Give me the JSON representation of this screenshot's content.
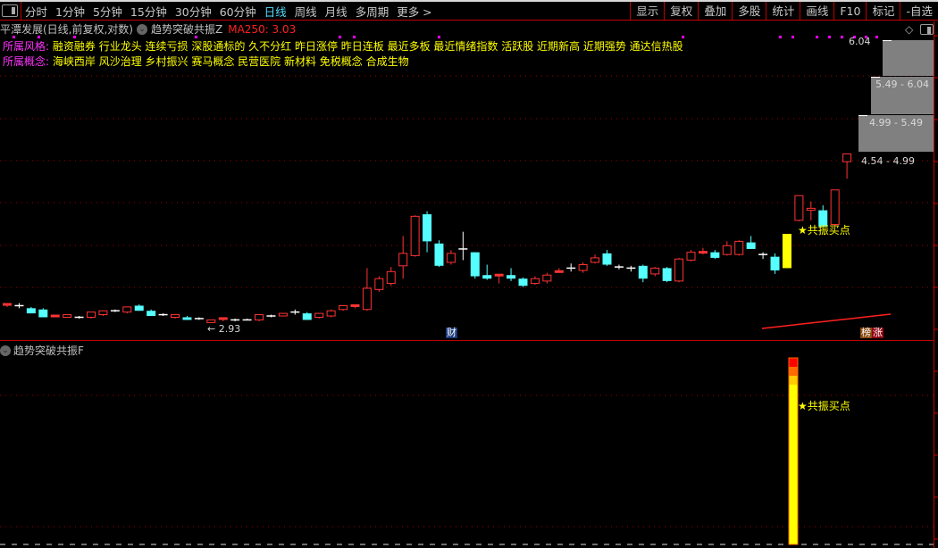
{
  "toolbar": {
    "periods": [
      "分时",
      "1分钟",
      "5分钟",
      "15分钟",
      "30分钟",
      "60分钟",
      "日线",
      "周线",
      "月线",
      "多周期",
      "更多 >"
    ],
    "active_period": "日线",
    "buttons": [
      "显示",
      "复权",
      "叠加",
      "多股",
      "统计",
      "画线",
      "F10",
      "标记",
      "-自选"
    ]
  },
  "header": {
    "stock": "平潭发展(日线,前复权,对数)",
    "indicator": "趋势突破共振Z",
    "ma_label": "MA250: 3.03"
  },
  "tags": {
    "style_label": "所属风格:",
    "style_values": "融资融券 行业龙头 连续亏损 深股通标的 久不分红 昨日涨停 昨日连板 最近多板 最近情绪指数 活跃股 近期新高 近期强势 通达信热股",
    "concept_label": "所属概念:",
    "concept_values": "海峡西岸 风沙治理 乡村振兴 赛马概念 民营医院 新材料 免税概念 合成生物"
  },
  "price_ranges": {
    "top": "6.04",
    "r1": "5.49 - 6.04",
    "r2": "4.99 - 5.49",
    "r3": "4.54 - 4.99"
  },
  "low_marker": "← 2.93",
  "badges": {
    "finance": "财",
    "rank": "榜",
    "rise": "涨"
  },
  "signal_label": "★共振买点",
  "lower_panel": {
    "title": "趋势突破共振F",
    "signal_label": "★共振买点"
  },
  "colors": {
    "up": "#ff3333",
    "down": "#55ffff",
    "neutral": "#ffffff",
    "signal": "#ffff00",
    "grid": "#a00000"
  },
  "chart_data": {
    "type": "candlestick",
    "scale": "log",
    "ylim": [
      2.9,
      6.1
    ],
    "candles": [
      [
        3.06,
        3.08,
        3.05,
        3.07
      ],
      [
        3.06,
        3.08,
        3.04,
        3.06
      ],
      [
        3.04,
        3.05,
        3.0,
        3.0
      ],
      [
        3.03,
        3.04,
        2.97,
        2.97
      ],
      [
        2.97,
        2.98,
        2.97,
        2.98
      ],
      [
        2.97,
        2.99,
        2.97,
        2.99
      ],
      [
        2.97,
        2.98,
        2.96,
        2.97
      ],
      [
        2.97,
        3.01,
        2.96,
        3.01
      ],
      [
        2.99,
        3.02,
        2.98,
        3.02
      ],
      [
        3.02,
        3.03,
        3.01,
        3.02
      ],
      [
        3.01,
        3.05,
        3.0,
        3.05
      ],
      [
        3.06,
        3.07,
        3.02,
        3.02
      ],
      [
        3.02,
        3.03,
        2.98,
        2.98
      ],
      [
        2.99,
        3.0,
        2.98,
        2.99
      ],
      [
        2.97,
        2.99,
        2.96,
        2.99
      ],
      [
        2.97,
        2.98,
        2.95,
        2.95
      ],
      [
        2.96,
        2.97,
        2.95,
        2.96
      ],
      [
        2.93,
        2.95,
        2.93,
        2.95
      ],
      [
        2.95,
        2.96,
        2.94,
        2.96
      ],
      [
        2.95,
        2.96,
        2.94,
        2.95
      ],
      [
        2.95,
        2.96,
        2.95,
        2.95
      ],
      [
        2.95,
        2.99,
        2.94,
        2.99
      ],
      [
        2.98,
        2.99,
        2.97,
        2.98
      ],
      [
        2.98,
        3.0,
        2.98,
        3.0
      ],
      [
        3.01,
        3.03,
        2.99,
        3.01
      ],
      [
        3.0,
        3.01,
        2.95,
        2.95
      ],
      [
        2.97,
        3.0,
        2.96,
        3.0
      ],
      [
        2.98,
        3.03,
        2.97,
        3.02
      ],
      [
        3.03,
        3.06,
        3.02,
        3.06
      ],
      [
        3.05,
        3.06,
        3.04,
        3.06
      ],
      [
        3.03,
        3.37,
        3.02,
        3.2
      ],
      [
        3.19,
        3.3,
        3.17,
        3.28
      ],
      [
        3.24,
        3.38,
        3.22,
        3.34
      ],
      [
        3.39,
        3.66,
        3.28,
        3.5
      ],
      [
        3.48,
        3.86,
        3.47,
        3.85
      ],
      [
        3.87,
        3.9,
        3.51,
        3.61
      ],
      [
        3.59,
        3.62,
        3.38,
        3.39
      ],
      [
        3.42,
        3.53,
        3.4,
        3.5
      ],
      [
        3.54,
        3.7,
        3.44,
        3.54
      ],
      [
        3.51,
        3.51,
        3.28,
        3.3
      ],
      [
        3.31,
        3.4,
        3.27,
        3.28
      ],
      [
        3.3,
        3.31,
        3.24,
        3.31
      ],
      [
        3.31,
        3.37,
        3.26,
        3.28
      ],
      [
        3.28,
        3.29,
        3.21,
        3.22
      ],
      [
        3.24,
        3.3,
        3.23,
        3.28
      ],
      [
        3.26,
        3.33,
        3.24,
        3.31
      ],
      [
        3.33,
        3.37,
        3.33,
        3.34
      ],
      [
        3.37,
        3.41,
        3.34,
        3.37
      ],
      [
        3.35,
        3.42,
        3.33,
        3.4
      ],
      [
        3.42,
        3.49,
        3.41,
        3.46
      ],
      [
        3.5,
        3.53,
        3.39,
        3.4
      ],
      [
        3.38,
        3.4,
        3.36,
        3.38
      ],
      [
        3.37,
        3.39,
        3.34,
        3.37
      ],
      [
        3.39,
        3.4,
        3.25,
        3.28
      ],
      [
        3.32,
        3.38,
        3.3,
        3.37
      ],
      [
        3.37,
        3.38,
        3.25,
        3.26
      ],
      [
        3.26,
        3.46,
        3.25,
        3.45
      ],
      [
        3.44,
        3.53,
        3.43,
        3.51
      ],
      [
        3.5,
        3.55,
        3.49,
        3.51
      ],
      [
        3.51,
        3.53,
        3.45,
        3.46
      ],
      [
        3.49,
        3.61,
        3.48,
        3.57
      ],
      [
        3.49,
        3.62,
        3.48,
        3.61
      ],
      [
        3.6,
        3.66,
        3.54,
        3.54
      ],
      [
        3.49,
        3.51,
        3.45,
        3.49
      ],
      [
        3.47,
        3.5,
        3.32,
        3.35
      ],
      [
        3.37,
        3.68,
        3.37,
        3.68
      ],
      [
        3.81,
        4.06,
        3.8,
        4.06
      ],
      [
        3.91,
        4.0,
        3.81,
        3.93
      ],
      [
        3.91,
        3.96,
        3.74,
        3.75
      ],
      [
        3.77,
        4.12,
        3.75,
        4.12
      ],
      [
        4.43,
        4.52,
        4.24,
        4.52
      ]
    ],
    "signal_index": 65,
    "ma250_tail": [
      2.9,
      2.91,
      2.92,
      2.94,
      2.96,
      2.98,
      3.0,
      3.03
    ]
  }
}
